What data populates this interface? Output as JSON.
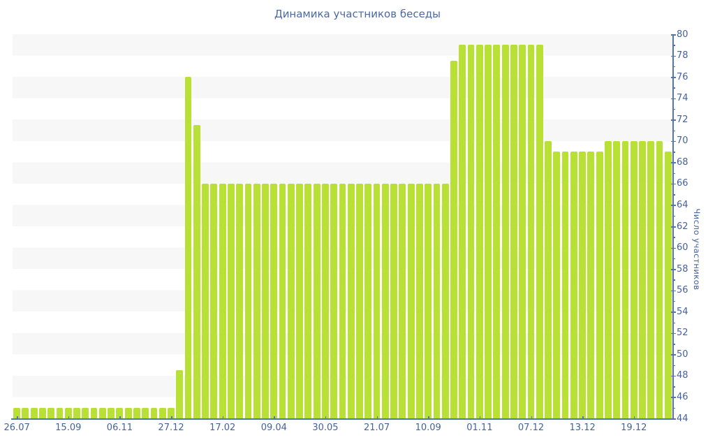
{
  "chart_data": {
    "type": "bar",
    "title": "Динамика участников беседы",
    "xlabel": "",
    "ylabel": "Число участников",
    "ylim": [
      44,
      80
    ],
    "y_tick_step": 2,
    "y_minor_tick_step": 1,
    "legend": false,
    "grid": "horizontal-bands-every-2-units",
    "x_tick_labels": [
      "26.07",
      "15.09",
      "06.11",
      "27.12",
      "17.02",
      "09.04",
      "30.05",
      "21.07",
      "10.09",
      "01.11",
      "07.12",
      "13.12",
      "19.12"
    ],
    "x_tick_every": 6,
    "values": [
      45,
      45,
      45,
      45,
      45,
      45,
      45,
      45,
      45,
      45,
      45,
      45,
      45,
      45,
      45,
      45,
      45,
      45,
      45,
      48.5,
      76,
      71.5,
      66,
      66,
      66,
      66,
      66,
      66,
      66,
      66,
      66,
      66,
      66,
      66,
      66,
      66,
      66,
      66,
      66,
      66,
      66,
      66,
      66,
      66,
      66,
      66,
      66,
      66,
      66,
      66,
      66,
      77.5,
      79,
      79,
      79,
      79,
      79,
      79,
      79,
      79,
      79,
      79,
      70,
      69,
      69,
      69,
      69,
      69,
      69,
      70,
      70,
      70,
      70,
      70,
      70,
      70,
      69
    ]
  },
  "style": {
    "bar_color": "#b9e035",
    "band_color": "#f7f7f7",
    "axis_color": "#5474b2",
    "text_color": "#44629e",
    "background_color": "#ffffff"
  }
}
